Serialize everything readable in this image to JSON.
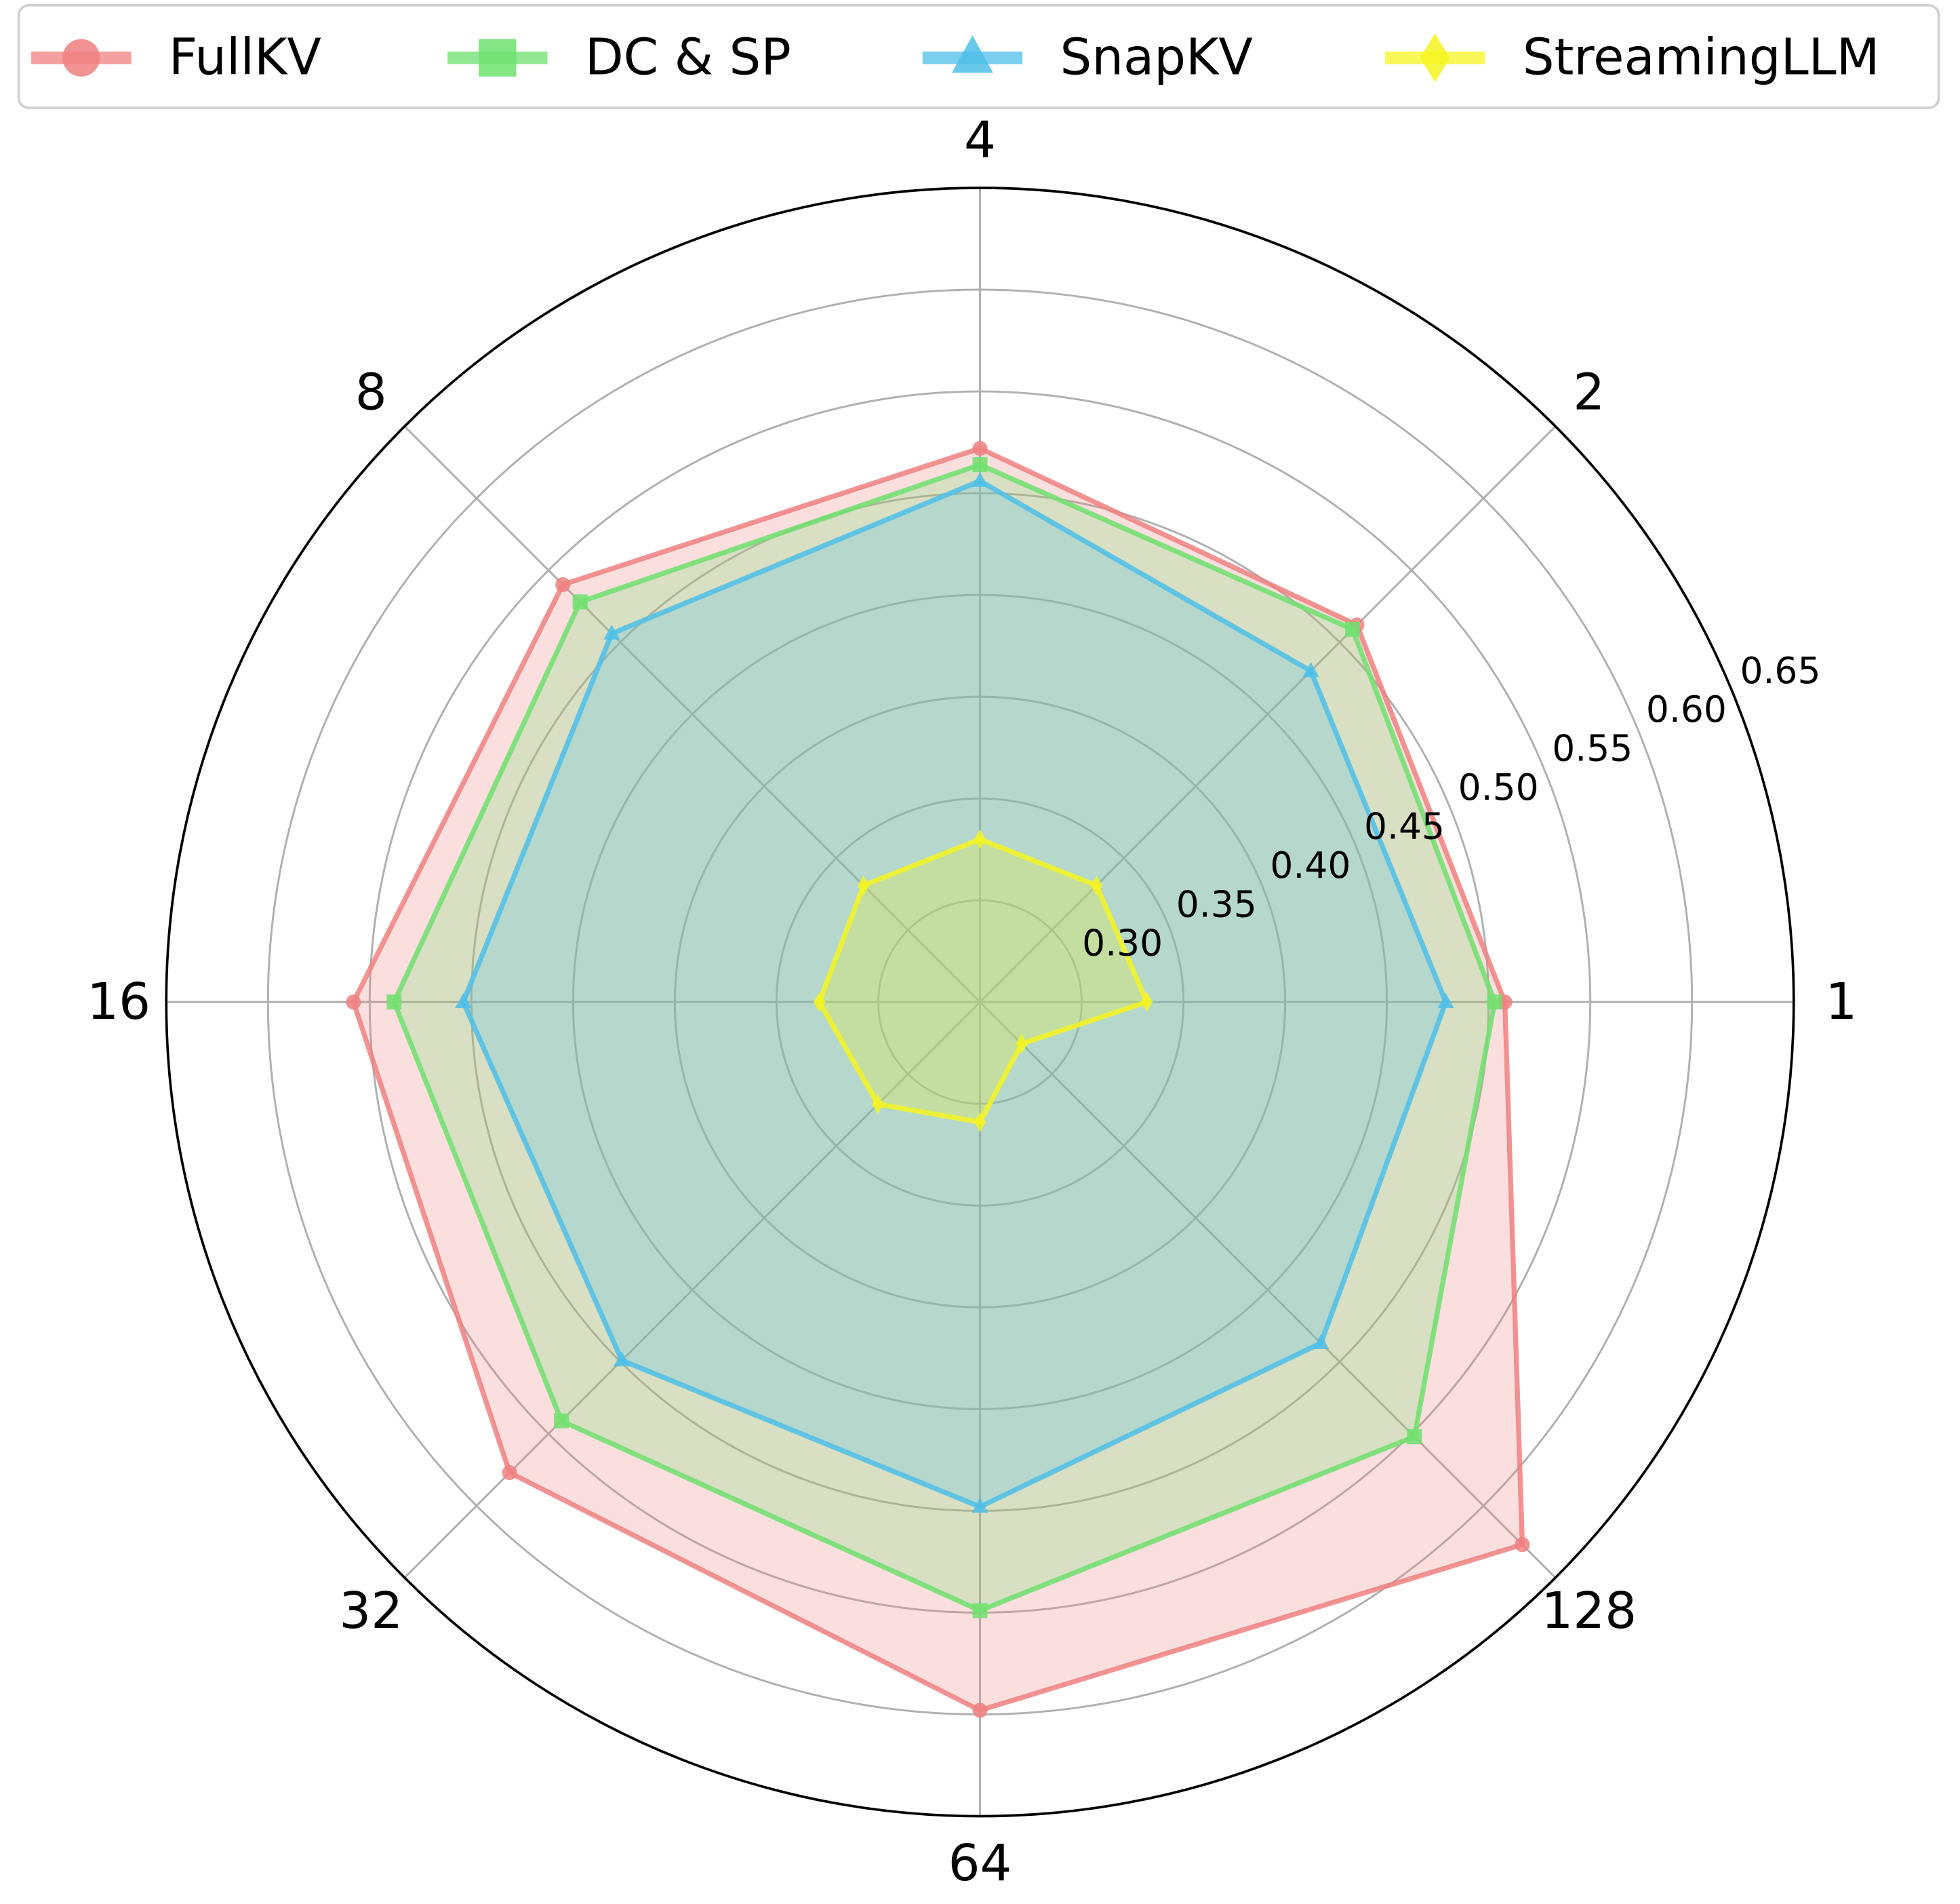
{
  "chart_data": {
    "type": "radar",
    "title": "",
    "categories": [
      "1",
      "2",
      "4",
      "8",
      "16",
      "32",
      "64",
      "128"
    ],
    "radial_ticks": [
      "0.30",
      "0.35",
      "0.40",
      "0.45",
      "0.50",
      "0.55",
      "0.60",
      "0.65"
    ],
    "radial_tick_values": [
      0.3,
      0.35,
      0.4,
      0.45,
      0.5,
      0.55,
      0.6,
      0.65
    ],
    "rlim": [
      0.25,
      0.65
    ],
    "grid": true,
    "legend_position": "top",
    "series": [
      {
        "name": "FullKV",
        "color": "#f08080",
        "marker": "circle",
        "values": [
          0.508,
          0.512,
          0.522,
          0.54,
          0.558,
          0.577,
          0.598,
          0.627
        ]
      },
      {
        "name": "DC & SP",
        "color": "#6ee06e",
        "marker": "square",
        "values": [
          0.503,
          0.509,
          0.514,
          0.528,
          0.538,
          0.541,
          0.549,
          0.552
        ]
      },
      {
        "name": "SnapKV",
        "color": "#4dbfe8",
        "marker": "triangle",
        "values": [
          0.479,
          0.48,
          0.506,
          0.506,
          0.504,
          0.499,
          0.498,
          0.487
        ]
      },
      {
        "name": "StreamingLLM",
        "color": "#f5f520",
        "marker": "diamond",
        "values": [
          0.332,
          0.331,
          0.33,
          0.331,
          0.329,
          0.321,
          0.309,
          0.279
        ]
      }
    ]
  }
}
